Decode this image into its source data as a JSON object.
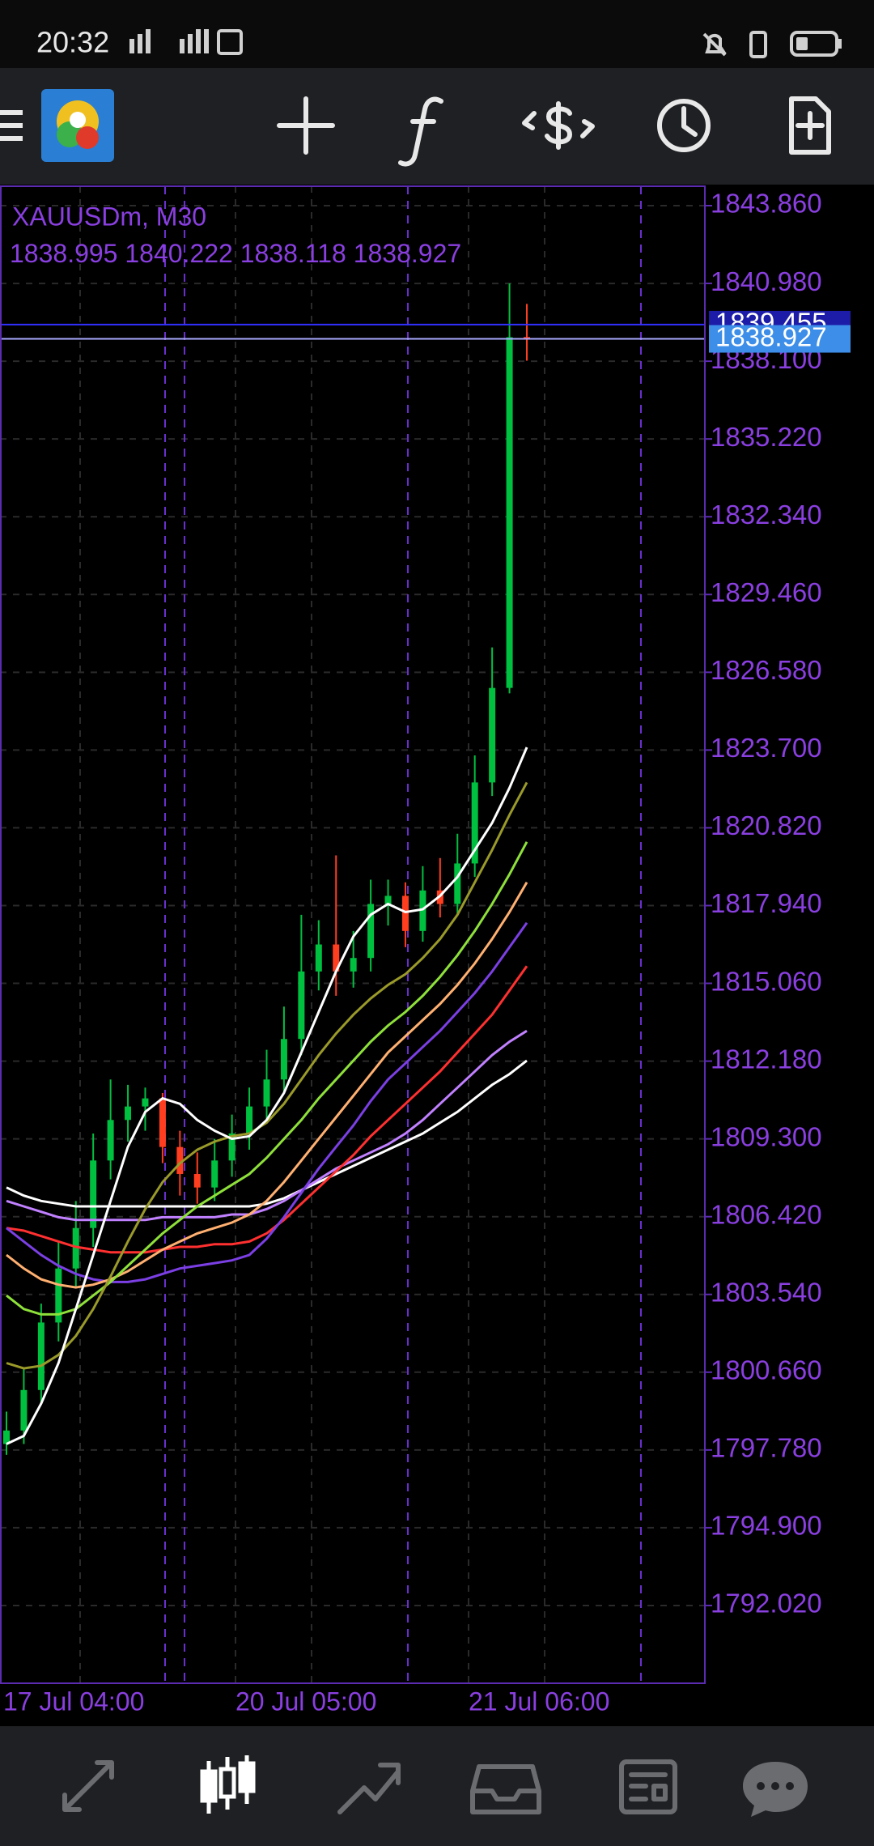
{
  "status": {
    "time": "20:32"
  },
  "chart": {
    "symbol": "XAUUSDm, M30",
    "ohlc": [
      1838.995,
      1840.222,
      1838.118,
      1838.927
    ],
    "ask": 1839.455,
    "bid": 1838.927,
    "ylim": [
      1789.14,
      1844.58
    ],
    "yticks": [
      {
        "value": 1843.86,
        "label": "1843.860"
      },
      {
        "value": 1840.98,
        "label": "1840.980"
      },
      {
        "value": 1838.1,
        "label": "1838.100"
      },
      {
        "value": 1835.22,
        "label": "1835.220"
      },
      {
        "value": 1832.34,
        "label": "1832.340"
      },
      {
        "value": 1829.46,
        "label": "1829.460"
      },
      {
        "value": 1826.58,
        "label": "1826.580"
      },
      {
        "value": 1823.7,
        "label": "1823.700"
      },
      {
        "value": 1820.82,
        "label": "1820.820"
      },
      {
        "value": 1817.94,
        "label": "1817.940"
      },
      {
        "value": 1815.06,
        "label": "1815.060"
      },
      {
        "value": 1812.18,
        "label": "1812.180"
      },
      {
        "value": 1809.3,
        "label": "1809.300"
      },
      {
        "value": 1806.42,
        "label": "1806.420"
      },
      {
        "value": 1803.54,
        "label": "1803.540"
      },
      {
        "value": 1800.66,
        "label": "1800.660"
      },
      {
        "value": 1797.78,
        "label": "1797.780"
      },
      {
        "value": 1794.9,
        "label": "1794.900"
      },
      {
        "value": 1792.02,
        "label": "1792.020"
      }
    ],
    "xlabels": [
      "17 Jul 04:00",
      "20 Jul 05:00",
      "21 Jul 06:00"
    ],
    "up_color": "#00c040",
    "down_color": "#ff3d1f",
    "candles": [
      [
        1798,
        1799.2,
        1797.6,
        1798.5
      ],
      [
        1798.5,
        1800.8,
        1798,
        1800
      ],
      [
        1800,
        1803.2,
        1799.5,
        1802.5
      ],
      [
        1802.5,
        1805.5,
        1801.8,
        1804.5
      ],
      [
        1804.5,
        1807,
        1803.8,
        1806
      ],
      [
        1806,
        1809.5,
        1805.3,
        1808.5
      ],
      [
        1808.5,
        1811.5,
        1807.8,
        1810
      ],
      [
        1810,
        1811.3,
        1809.2,
        1810.5
      ],
      [
        1810.5,
        1811.2,
        1809.6,
        1810.8
      ],
      [
        1810.8,
        1811,
        1808.4,
        1809
      ],
      [
        1809,
        1809.6,
        1807.2,
        1808
      ],
      [
        1808,
        1808.8,
        1806.9,
        1807.5
      ],
      [
        1807.5,
        1809.3,
        1807,
        1808.5
      ],
      [
        1808.5,
        1810.2,
        1807.9,
        1809.5
      ],
      [
        1809.5,
        1811.2,
        1808.9,
        1810.5
      ],
      [
        1810.5,
        1812.6,
        1810,
        1811.5
      ],
      [
        1811.5,
        1814.2,
        1811,
        1813
      ],
      [
        1813,
        1817.6,
        1812.4,
        1815.5
      ],
      [
        1815.5,
        1817.4,
        1814.8,
        1816.5
      ],
      [
        1816.5,
        1819.8,
        1814.6,
        1815.5
      ],
      [
        1815.5,
        1817,
        1814.9,
        1816
      ],
      [
        1816,
        1818.9,
        1815.5,
        1818
      ],
      [
        1818,
        1818.9,
        1817.2,
        1818.3
      ],
      [
        1818.3,
        1818.8,
        1816.4,
        1817
      ],
      [
        1817,
        1819.4,
        1816.6,
        1818.5
      ],
      [
        1818.5,
        1819.7,
        1817.5,
        1818
      ],
      [
        1818,
        1820.6,
        1817.6,
        1819.5
      ],
      [
        1819.5,
        1823.5,
        1819,
        1822.5
      ],
      [
        1822.5,
        1827.5,
        1822,
        1826
      ],
      [
        1826,
        1840.98,
        1825.8,
        1838.99
      ],
      [
        1838.995,
        1840.222,
        1838.118,
        1838.927
      ]
    ],
    "series": [
      {
        "color": "#ffffff",
        "values": [
          1807.5,
          1807.2,
          1807,
          1806.9,
          1806.8,
          1806.8,
          1806.8,
          1806.8,
          1806.8,
          1806.8,
          1806.8,
          1806.8,
          1806.8,
          1806.8,
          1806.8,
          1806.9,
          1807.1,
          1807.4,
          1807.7,
          1808,
          1808.3,
          1808.6,
          1808.9,
          1809.2,
          1809.5,
          1809.9,
          1810.3,
          1810.8,
          1811.3,
          1811.7,
          1812.2
        ]
      },
      {
        "color": "#c080ff",
        "values": [
          1807,
          1806.8,
          1806.6,
          1806.4,
          1806.3,
          1806.3,
          1806.3,
          1806.3,
          1806.3,
          1806.4,
          1806.4,
          1806.4,
          1806.4,
          1806.5,
          1806.5,
          1806.7,
          1807,
          1807.4,
          1807.8,
          1808.2,
          1808.5,
          1808.8,
          1809.1,
          1809.5,
          1810,
          1810.6,
          1811.2,
          1811.8,
          1812.4,
          1812.9,
          1813.3
        ]
      },
      {
        "color": "#ff3030",
        "values": [
          1806,
          1805.9,
          1805.7,
          1805.5,
          1805.3,
          1805.2,
          1805.1,
          1805.1,
          1805.1,
          1805.2,
          1805.3,
          1805.3,
          1805.4,
          1805.4,
          1805.5,
          1805.8,
          1806.3,
          1806.9,
          1807.5,
          1808.1,
          1808.7,
          1809.4,
          1810,
          1810.6,
          1811.2,
          1811.8,
          1812.5,
          1813.2,
          1813.9,
          1814.8,
          1815.7
        ]
      },
      {
        "color": "#7b3fe4",
        "values": [
          1806,
          1805.5,
          1805,
          1804.6,
          1804.3,
          1804.1,
          1804,
          1804,
          1804.1,
          1804.3,
          1804.5,
          1804.6,
          1804.7,
          1804.8,
          1805,
          1805.6,
          1806.4,
          1807.3,
          1808.2,
          1809,
          1809.8,
          1810.7,
          1811.5,
          1812.1,
          1812.7,
          1813.3,
          1814,
          1814.7,
          1815.5,
          1816.4,
          1817.3
        ]
      },
      {
        "color": "#ffb070",
        "values": [
          1805,
          1804.5,
          1804.1,
          1803.9,
          1803.8,
          1803.9,
          1804.1,
          1804.4,
          1804.8,
          1805.2,
          1805.5,
          1805.8,
          1806,
          1806.2,
          1806.5,
          1807,
          1807.7,
          1808.5,
          1809.3,
          1810.1,
          1810.9,
          1811.7,
          1812.5,
          1813.1,
          1813.7,
          1814.3,
          1815,
          1815.8,
          1816.7,
          1817.7,
          1818.8
        ]
      },
      {
        "color": "#8ee03a",
        "values": [
          1803.5,
          1803,
          1802.8,
          1802.8,
          1803,
          1803.5,
          1804,
          1804.6,
          1805.2,
          1805.8,
          1806.3,
          1806.8,
          1807.2,
          1807.6,
          1808,
          1808.6,
          1809.3,
          1810,
          1810.8,
          1811.5,
          1812.2,
          1812.9,
          1813.5,
          1814,
          1814.6,
          1815.3,
          1816.1,
          1817,
          1818,
          1819.1,
          1820.3
        ]
      },
      {
        "color": "#9a9a2a",
        "values": [
          1801,
          1800.8,
          1800.9,
          1801.3,
          1802,
          1803,
          1804.2,
          1805.5,
          1806.7,
          1807.7,
          1808.4,
          1808.9,
          1809.2,
          1809.4,
          1809.5,
          1809.9,
          1810.6,
          1811.5,
          1812.4,
          1813.2,
          1813.9,
          1814.5,
          1815,
          1815.4,
          1816,
          1816.7,
          1817.6,
          1818.8,
          1820,
          1821.3,
          1822.5
        ]
      },
      {
        "color": "#ffffff",
        "values": [
          1798,
          1798.3,
          1799.5,
          1801,
          1803,
          1805,
          1807,
          1809,
          1810.3,
          1810.8,
          1810.6,
          1810,
          1809.6,
          1809.3,
          1809.4,
          1810,
          1811,
          1812.5,
          1814,
          1815.5,
          1816.8,
          1817.6,
          1818,
          1817.7,
          1817.8,
          1818.3,
          1819,
          1820,
          1821,
          1822.3,
          1823.8
        ]
      }
    ]
  }
}
